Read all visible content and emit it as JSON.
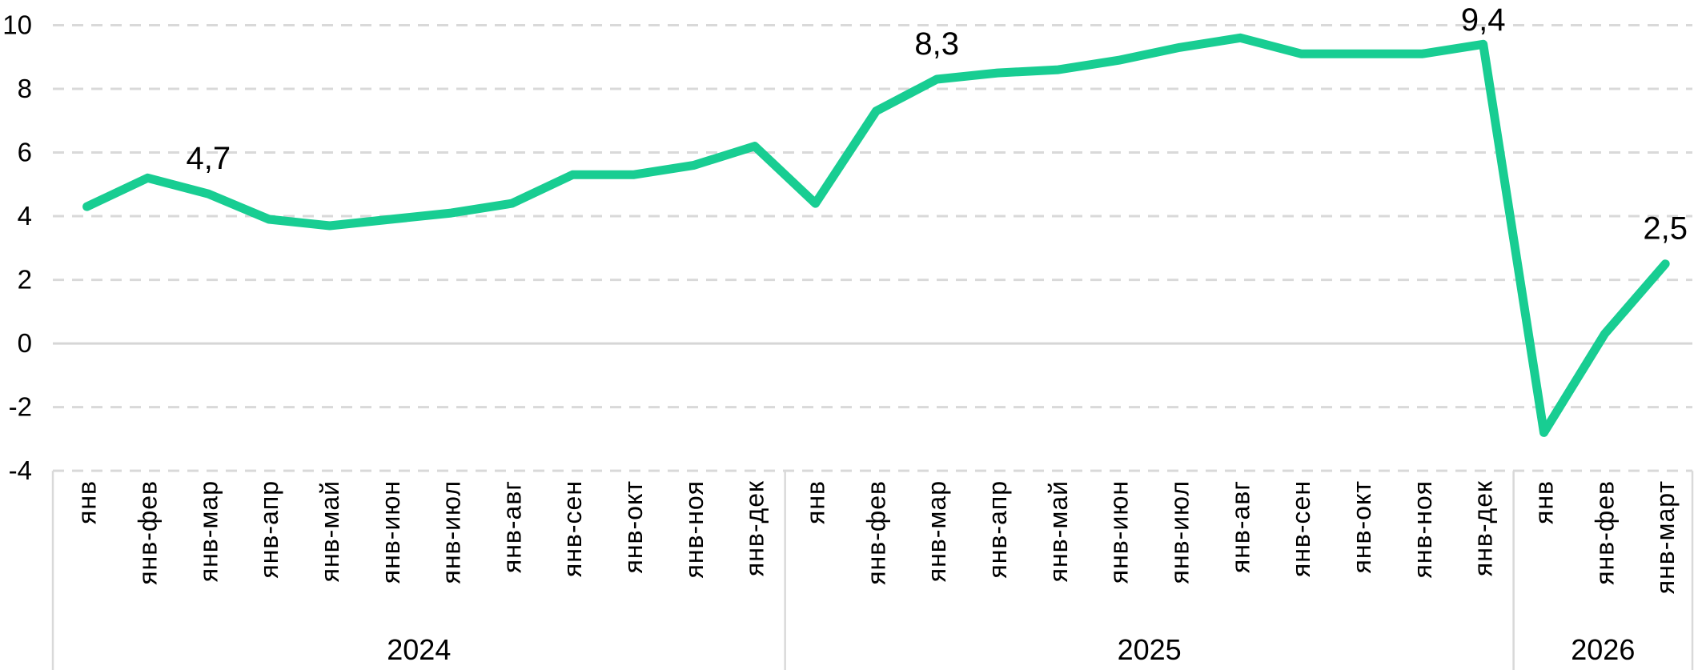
{
  "chart_data": {
    "type": "line",
    "title": "",
    "series_name": "cumulative-value-pct",
    "series_color": "#18CD92",
    "grid_color": "#D9D9D9",
    "zero_line_color": "#D6D6D6",
    "separator_color": "#D9D9D9",
    "text_color": "#000000",
    "y_axis": {
      "ticks": [
        10,
        8,
        6,
        4,
        2,
        0,
        -2,
        -4
      ],
      "min": -4,
      "max": 10,
      "grid": "dashed",
      "zero_line": "solid"
    },
    "x_axis": {
      "label_rotation_deg": -90,
      "groups": [
        {
          "label": "2024",
          "months": [
            "янв",
            "янв-фев",
            "янв-мар",
            "янв-апр",
            "янв-май",
            "янв-июн",
            "янв-июл",
            "янв-авг",
            "янв-сен",
            "янв-окт",
            "янв-ноя",
            "янв-дек"
          ]
        },
        {
          "label": "2025",
          "months": [
            "янв",
            "янв-фев",
            "янв-мар",
            "янв-апр",
            "янв-май",
            "янв-июн",
            "янв-июл",
            "янв-авг",
            "янв-сен",
            "янв-окт",
            "янв-ноя",
            "янв-дек"
          ]
        },
        {
          "label": "2026",
          "months": [
            "янв",
            "янв-фев",
            "янв-март"
          ]
        }
      ]
    },
    "categories": [
      "янв",
      "янв-фев",
      "янв-мар",
      "янв-апр",
      "янв-май",
      "янв-июн",
      "янв-июл",
      "янв-авг",
      "янв-сен",
      "янв-окт",
      "янв-ноя",
      "янв-дек",
      "янв",
      "янв-фев",
      "янв-мар",
      "янв-апр",
      "янв-май",
      "янв-июн",
      "янв-июл",
      "янв-авг",
      "янв-сен",
      "янв-окт",
      "янв-ноя",
      "янв-дек",
      "янв",
      "янв-фев",
      "янв-март"
    ],
    "values": [
      4.3,
      5.2,
      4.7,
      3.9,
      3.7,
      3.9,
      4.1,
      4.4,
      5.3,
      5.3,
      5.6,
      6.2,
      4.4,
      7.3,
      8.3,
      8.5,
      8.6,
      8.9,
      9.3,
      9.6,
      9.1,
      9.1,
      9.1,
      9.4,
      -2.8,
      0.3,
      2.5
    ],
    "point_labels": [
      {
        "index": 2,
        "text": "4,7"
      },
      {
        "index": 14,
        "text": "8,3"
      },
      {
        "index": 23,
        "text": "9,4"
      },
      {
        "index": 26,
        "text": "2,5"
      }
    ],
    "legend": "none"
  }
}
